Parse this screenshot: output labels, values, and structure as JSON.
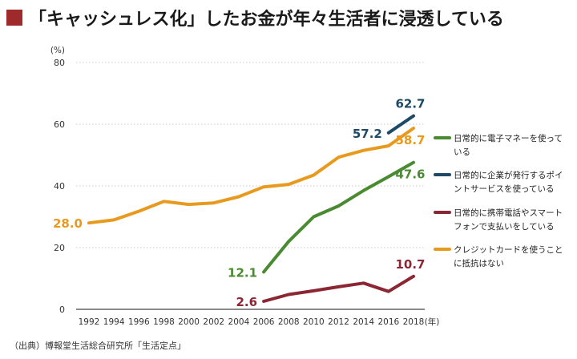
{
  "title": "「キャッシュレス化」したお金が年々生活者に浸透している",
  "title_square_color": "#9e2a2b",
  "source": "（出典）博報堂生活総合研究所「生活定点」",
  "chart_data": {
    "type": "line",
    "y_unit_label": "(%)",
    "x_unit_label": "(年)",
    "ylim": [
      0,
      80
    ],
    "yticks": [
      0,
      20,
      40,
      60,
      80
    ],
    "xlim": [
      1992,
      2018
    ],
    "xticks": [
      1992,
      1994,
      1996,
      1998,
      2000,
      2002,
      2004,
      2006,
      2008,
      2010,
      2012,
      2014,
      2016,
      2018
    ],
    "grid": true,
    "series": [
      {
        "name": "日常的に電子マネーを使っている",
        "legend_lines": [
          "日常的に電子マネーを使って",
          "いる"
        ],
        "color": "#4a8a30",
        "x": [
          2006,
          2008,
          2010,
          2012,
          2014,
          2016,
          2018
        ],
        "values": [
          12.1,
          22.0,
          30.0,
          33.5,
          38.5,
          43.0,
          47.6
        ],
        "labels": [
          {
            "text": "12.1",
            "at": "start",
            "pos": "left"
          },
          {
            "text": "47.6",
            "at": "end",
            "pos": "below"
          }
        ]
      },
      {
        "name": "日常的に企業が発行するポイントサービスを使っている",
        "legend_lines": [
          "日常的に企業が発行するポイ",
          "ントサービスを使っている"
        ],
        "color": "#1e4a66",
        "x": [
          2016,
          2018
        ],
        "values": [
          57.2,
          62.7
        ],
        "labels": [
          {
            "text": "57.2",
            "at": "start",
            "pos": "left"
          },
          {
            "text": "62.7",
            "at": "end",
            "pos": "above"
          }
        ]
      },
      {
        "name": "日常的に携帯電話やスマートフォンで支払いをしている",
        "legend_lines": [
          "日常的に携帯電話やスマート",
          "フォンで支払いをしている"
        ],
        "color": "#8b2632",
        "x": [
          2006,
          2008,
          2010,
          2012,
          2014,
          2016,
          2018
        ],
        "values": [
          2.6,
          4.8,
          6.0,
          7.3,
          8.5,
          5.8,
          10.7
        ],
        "labels": [
          {
            "text": "2.6",
            "at": "start",
            "pos": "left"
          },
          {
            "text": "10.7",
            "at": "end",
            "pos": "above"
          }
        ]
      },
      {
        "name": "クレジットカードを使うことに抵抗はない",
        "legend_lines": [
          "クレジットカードを使うこと",
          "に抵抗はない"
        ],
        "color": "#e89a1f",
        "x": [
          1992,
          1994,
          1996,
          1998,
          2000,
          2002,
          2004,
          2006,
          2008,
          2010,
          2012,
          2014,
          2016,
          2018
        ],
        "values": [
          28.0,
          29.0,
          31.8,
          35.0,
          34.0,
          34.5,
          36.5,
          39.7,
          40.5,
          43.5,
          49.3,
          51.5,
          53.0,
          58.7
        ],
        "labels": [
          {
            "text": "28.0",
            "at": "start",
            "pos": "left"
          },
          {
            "text": "58.7",
            "at": "end",
            "pos": "below"
          }
        ]
      }
    ],
    "legend_order": [
      0,
      1,
      2,
      3
    ],
    "legend_position": "right"
  }
}
